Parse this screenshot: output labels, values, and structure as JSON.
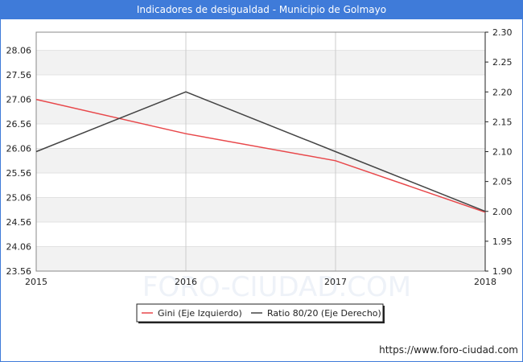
{
  "title": "Indicadores de desigualdad - Municipio de Golmayo",
  "source_url": "https://www.foro-ciudad.com",
  "watermark": "FORO-CIUDAD.COM",
  "colors": {
    "header": "#3f7bd9",
    "gini": "#e8474a",
    "ratio": "#444444",
    "band": "#f2f2f2",
    "grid": "#cccccc"
  },
  "chart_data": {
    "type": "line",
    "x": [
      "2015",
      "2016",
      "2017",
      "2018"
    ],
    "y_left": {
      "ticks": [
        "23.56",
        "24.06",
        "24.56",
        "25.06",
        "25.56",
        "26.06",
        "26.56",
        "27.06",
        "27.56",
        "28.06"
      ],
      "range": [
        23.56,
        28.43
      ]
    },
    "y_right": {
      "ticks": [
        "1.90",
        "1.95",
        "2.00",
        "2.05",
        "2.10",
        "2.15",
        "2.20",
        "2.25",
        "2.30"
      ],
      "range": [
        1.9,
        2.3
      ]
    },
    "series": [
      {
        "name": "Gini (Eje Izquierdo)",
        "axis": "left",
        "values": [
          27.06,
          26.36,
          25.81,
          24.76
        ]
      },
      {
        "name": "Ratio 80/20 (Eje Derecho)",
        "axis": "right",
        "values": [
          2.1,
          2.2,
          2.1,
          2.0
        ]
      }
    ],
    "legend_position": "bottom-center",
    "grid": true
  }
}
